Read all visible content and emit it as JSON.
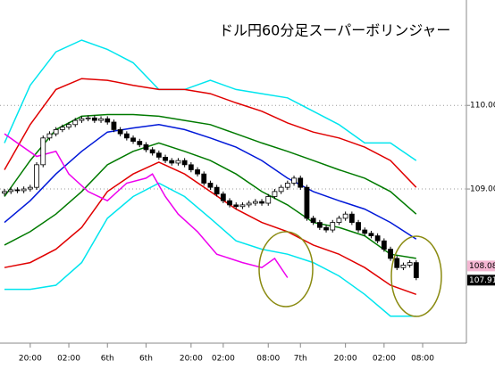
{
  "chart_data": {
    "type": "candlestick",
    "title": "ドル円60分足スーパーボリンジャー",
    "xlim": [
      -0.7,
      71.8
    ],
    "ylim": [
      107.21,
      111.26
    ],
    "yticks": [
      {
        "value": 110,
        "label": "110.00"
      },
      {
        "value": 109,
        "label": "109.00"
      }
    ],
    "xticks": [
      {
        "value": 4,
        "label": "20:00"
      },
      {
        "value": 10,
        "label": "02:00"
      },
      {
        "value": 16,
        "label": "6th"
      },
      {
        "value": 22,
        "label": "6th"
      },
      {
        "value": 29,
        "label": "20:00"
      },
      {
        "value": 34,
        "label": "02:00"
      },
      {
        "value": 41,
        "label": "08:00"
      },
      {
        "value": 46,
        "label": "7th"
      },
      {
        "value": 53,
        "label": "20:00"
      },
      {
        "value": 59,
        "label": "02:00"
      },
      {
        "value": 65,
        "label": "08:00"
      }
    ],
    "grid": true,
    "up_color": "#ffffff",
    "down_color": "#000000",
    "candles": {
      "open": [
        108.95,
        108.97,
        108.99,
        108.98,
        109.0,
        109.02,
        109.29,
        109.61,
        109.66,
        109.71,
        109.74,
        109.77,
        109.82,
        109.84,
        109.85,
        109.82,
        109.84,
        109.8,
        109.71,
        109.66,
        109.61,
        109.57,
        109.53,
        109.47,
        109.43,
        109.38,
        109.34,
        109.31,
        109.34,
        109.29,
        109.23,
        109.18,
        109.07,
        109.02,
        108.94,
        108.86,
        108.81,
        108.79,
        108.81,
        108.83,
        108.85,
        108.83,
        108.91,
        108.97,
        109.02,
        109.07,
        109.13,
        109.02,
        108.65,
        108.6,
        108.54,
        108.51,
        108.6,
        108.65,
        108.7,
        108.6,
        108.51,
        108.47,
        108.44,
        108.38,
        108.28,
        108.17,
        108.06,
        108.09,
        108.12
      ],
      "high": [
        109.0,
        109.02,
        109.02,
        109.03,
        109.05,
        109.32,
        109.64,
        109.69,
        109.74,
        109.77,
        109.8,
        109.85,
        109.87,
        109.88,
        109.88,
        109.87,
        109.87,
        109.83,
        109.74,
        109.69,
        109.64,
        109.6,
        109.56,
        109.5,
        109.46,
        109.41,
        109.37,
        109.37,
        109.37,
        109.32,
        109.26,
        109.21,
        109.1,
        109.05,
        108.97,
        108.89,
        108.84,
        108.84,
        108.86,
        108.88,
        108.88,
        108.94,
        109.0,
        109.05,
        109.1,
        109.16,
        109.16,
        109.05,
        108.68,
        108.63,
        108.57,
        108.63,
        108.68,
        108.73,
        108.73,
        108.63,
        108.54,
        108.5,
        108.47,
        108.41,
        108.31,
        108.2,
        108.12,
        108.15,
        108.15
      ],
      "low": [
        108.92,
        108.94,
        108.95,
        108.95,
        108.97,
        108.99,
        109.26,
        109.58,
        109.63,
        109.68,
        109.71,
        109.74,
        109.79,
        109.81,
        109.79,
        109.79,
        109.77,
        109.68,
        109.63,
        109.58,
        109.54,
        109.5,
        109.44,
        109.4,
        109.35,
        109.31,
        109.28,
        109.28,
        109.26,
        109.2,
        109.15,
        109.04,
        108.99,
        108.91,
        108.83,
        108.78,
        108.76,
        108.76,
        108.78,
        108.8,
        108.8,
        108.8,
        108.88,
        108.94,
        108.99,
        109.04,
        108.99,
        108.62,
        108.57,
        108.51,
        108.48,
        108.48,
        108.57,
        108.62,
        108.57,
        108.48,
        108.44,
        108.41,
        108.35,
        108.25,
        108.14,
        108.03,
        108.03,
        108.06,
        107.91
      ],
      "close": [
        108.97,
        108.99,
        108.98,
        109.0,
        109.02,
        109.29,
        109.61,
        109.66,
        109.71,
        109.74,
        109.77,
        109.82,
        109.84,
        109.85,
        109.82,
        109.84,
        109.8,
        109.71,
        109.66,
        109.61,
        109.57,
        109.53,
        109.47,
        109.43,
        109.38,
        109.34,
        109.31,
        109.34,
        109.29,
        109.23,
        109.18,
        109.07,
        109.02,
        108.94,
        108.86,
        108.81,
        108.79,
        108.81,
        108.83,
        108.85,
        108.83,
        108.91,
        108.97,
        109.02,
        109.07,
        109.13,
        109.02,
        108.65,
        108.6,
        108.54,
        108.51,
        108.6,
        108.65,
        108.7,
        108.6,
        108.51,
        108.47,
        108.44,
        108.38,
        108.28,
        108.17,
        108.06,
        108.09,
        108.12,
        107.94
      ]
    },
    "lines": [
      {
        "color": "#00e5ee",
        "x": [
          0,
          4,
          8,
          12,
          16,
          20,
          24,
          28,
          32,
          36,
          40,
          44,
          48,
          52,
          56,
          60,
          64
        ],
        "values": [
          109.55,
          110.24,
          110.64,
          110.78,
          110.67,
          110.51,
          110.19,
          110.19,
          110.3,
          110.19,
          110.14,
          110.09,
          109.93,
          109.77,
          109.55,
          109.55,
          109.34
        ]
      },
      {
        "color": "#e00000",
        "x": [
          0,
          4,
          8,
          12,
          16,
          20,
          24,
          28,
          32,
          36,
          40,
          44,
          48,
          52,
          56,
          60,
          64
        ],
        "values": [
          109.23,
          109.77,
          110.19,
          110.32,
          110.3,
          110.24,
          110.19,
          110.19,
          110.14,
          110.03,
          109.93,
          109.79,
          109.68,
          109.61,
          109.5,
          109.34,
          109.02
        ]
      },
      {
        "color": "#007a00",
        "x": [
          0,
          4,
          8,
          12,
          16,
          20,
          24,
          28,
          32,
          36,
          40,
          44,
          48,
          52,
          56,
          60,
          64
        ],
        "values": [
          108.91,
          109.34,
          109.71,
          109.87,
          109.89,
          109.89,
          109.87,
          109.82,
          109.77,
          109.66,
          109.55,
          109.45,
          109.34,
          109.23,
          109.13,
          108.97,
          108.7
        ]
      },
      {
        "color": "#0018d8",
        "x": [
          0,
          4,
          8,
          12,
          16,
          20,
          24,
          28,
          32,
          36,
          40,
          44,
          48,
          52,
          56,
          60,
          64
        ],
        "values": [
          108.6,
          108.86,
          109.18,
          109.45,
          109.68,
          109.73,
          109.77,
          109.71,
          109.61,
          109.5,
          109.34,
          109.13,
          108.97,
          108.86,
          108.76,
          108.6,
          108.4
        ]
      },
      {
        "color": "#007a00",
        "x": [
          0,
          4,
          8,
          12,
          16,
          20,
          24,
          28,
          32,
          36,
          40,
          44,
          48,
          52,
          56,
          60,
          64
        ],
        "values": [
          108.33,
          108.49,
          108.7,
          108.97,
          109.29,
          109.45,
          109.55,
          109.45,
          109.34,
          109.18,
          108.97,
          108.81,
          108.6,
          108.54,
          108.44,
          108.22,
          108.17
        ]
      },
      {
        "color": "#e00000",
        "x": [
          0,
          4,
          8,
          12,
          16,
          20,
          24,
          28,
          32,
          36,
          40,
          44,
          48,
          52,
          56,
          60,
          64
        ],
        "values": [
          108.06,
          108.12,
          108.28,
          108.54,
          108.97,
          109.18,
          109.32,
          109.18,
          108.97,
          108.76,
          108.6,
          108.49,
          108.33,
          108.22,
          108.06,
          107.85,
          107.74
        ]
      },
      {
        "color": "#00e5ee",
        "x": [
          0,
          4,
          8,
          12,
          16,
          20,
          24,
          28,
          32,
          36,
          40,
          44,
          48,
          52,
          56,
          60,
          64
        ],
        "values": [
          107.8,
          107.8,
          107.85,
          108.12,
          108.65,
          108.91,
          109.07,
          108.91,
          108.65,
          108.38,
          108.28,
          108.22,
          108.12,
          107.96,
          107.74,
          107.48,
          107.48
        ]
      },
      {
        "color": "#ee00ee",
        "x": [
          0,
          2,
          5,
          8,
          10,
          13,
          16,
          19,
          22,
          23,
          25,
          27,
          30,
          33,
          37,
          40,
          42,
          44
        ],
        "values": [
          109.66,
          109.55,
          109.39,
          109.45,
          109.18,
          108.97,
          108.86,
          109.07,
          109.13,
          109.18,
          108.91,
          108.7,
          108.49,
          108.22,
          108.12,
          108.06,
          108.17,
          107.94
        ]
      }
    ],
    "price_labels": [
      108.08,
      107.91
    ],
    "price_label_colors": [
      "#f4b6d2",
      "#000000"
    ]
  }
}
